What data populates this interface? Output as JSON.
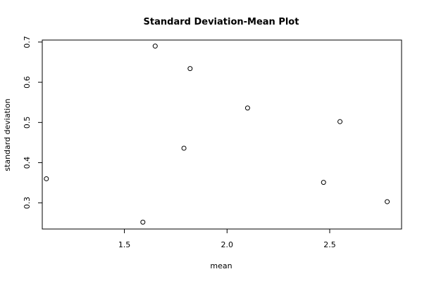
{
  "chart_data": {
    "type": "scatter",
    "title": "Standard Deviation-Mean Plot",
    "xlabel": "mean",
    "ylabel": "standard deviation",
    "xlim": [
      1.1,
      2.85
    ],
    "ylim": [
      0.235,
      0.705
    ],
    "xticks": [
      1.5,
      2.0,
      2.5
    ],
    "xtick_labels": [
      "1.5",
      "2.0",
      "2.5"
    ],
    "yticks": [
      0.3,
      0.4,
      0.5,
      0.6,
      0.7
    ],
    "ytick_labels": [
      "0.3",
      "0.4",
      "0.5",
      "0.6",
      "0.7"
    ],
    "grid": false,
    "points": [
      {
        "x": 1.12,
        "y": 0.36
      },
      {
        "x": 1.59,
        "y": 0.252
      },
      {
        "x": 1.65,
        "y": 0.69
      },
      {
        "x": 1.79,
        "y": 0.436
      },
      {
        "x": 1.82,
        "y": 0.634
      },
      {
        "x": 2.1,
        "y": 0.536
      },
      {
        "x": 2.47,
        "y": 0.351
      },
      {
        "x": 2.55,
        "y": 0.502
      },
      {
        "x": 2.78,
        "y": 0.303
      }
    ]
  }
}
